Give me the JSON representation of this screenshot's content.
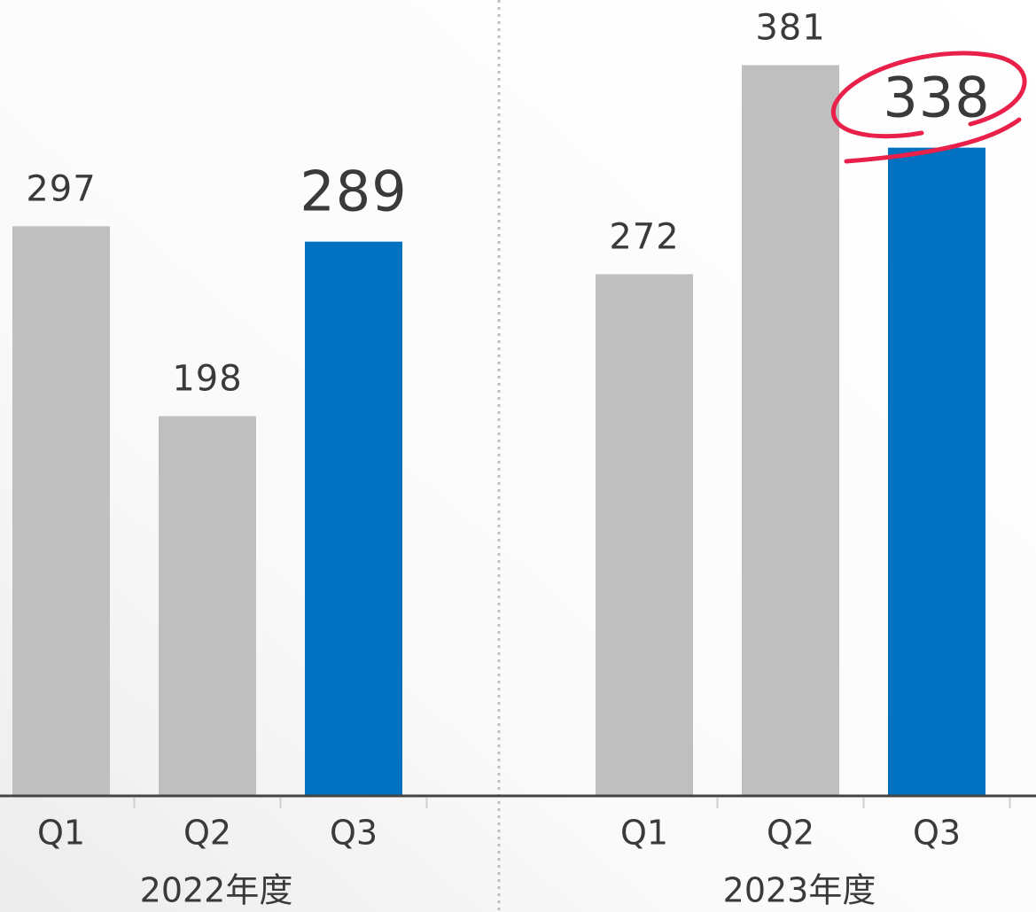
{
  "chart_data": {
    "type": "bar",
    "groups": [
      {
        "name": "2022年度",
        "categories": [
          "Q1",
          "Q2",
          "Q3"
        ],
        "values": [
          297,
          198,
          289
        ],
        "colors": [
          "#bfbfbf",
          "#bfbfbf",
          "#0070c0"
        ]
      },
      {
        "name": "2023年度",
        "categories": [
          "Q1",
          "Q2",
          "Q3"
        ],
        "values": [
          272,
          381,
          338
        ],
        "colors": [
          "#bfbfbf",
          "#bfbfbf",
          "#0070c0"
        ]
      }
    ],
    "ylim": [
      0,
      415
    ]
  }
}
